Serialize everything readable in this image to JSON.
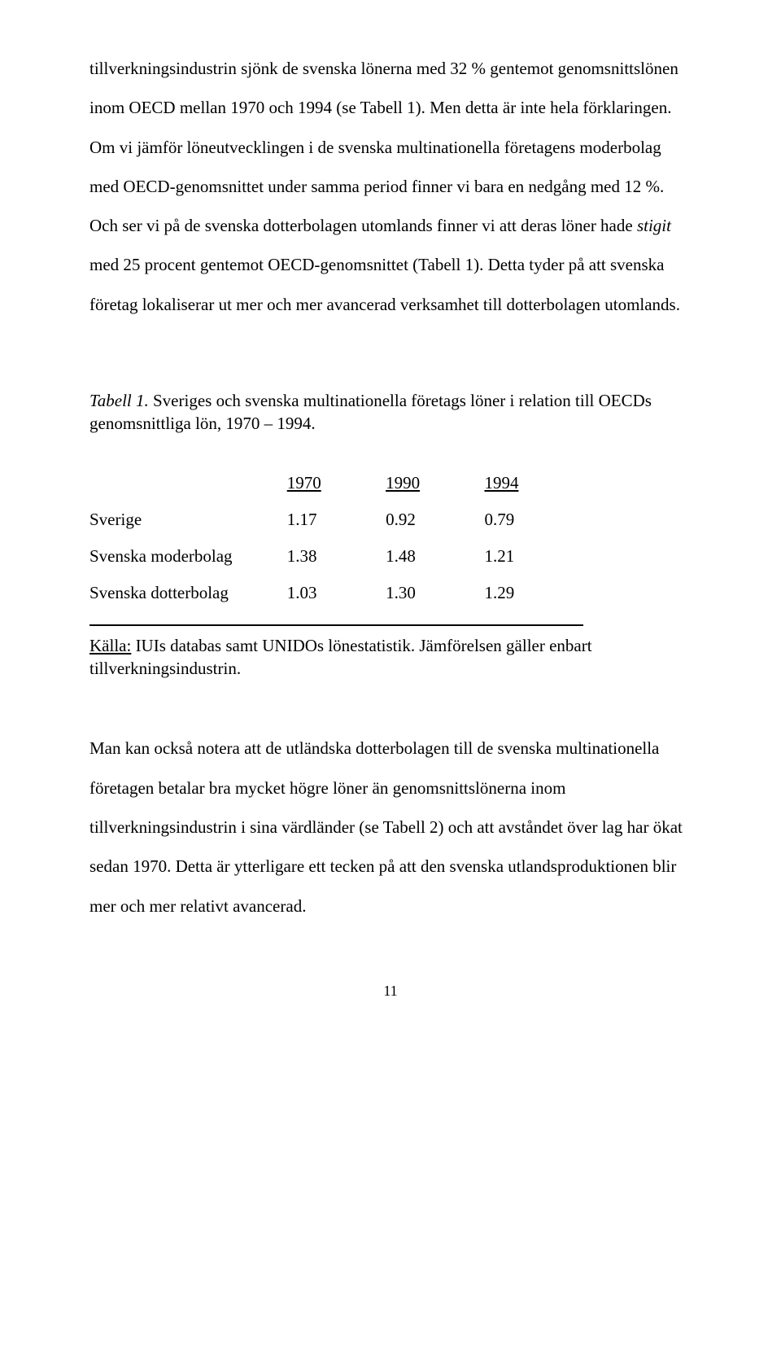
{
  "para1_a": "tillverkningsindustrin sjönk de svenska lönerna med 32 % gentemot genomsnittslönen inom OECD mellan 1970 och 1994 (se Tabell 1). Men detta är inte hela förklaringen. Om vi jämför löneutvecklingen i de svenska multinationella företagens moderbolag med OECD-genomsnittet under samma period finner vi bara en nedgång med 12 %. Och ser vi på de svenska dotterbolagen utomlands finner vi att deras löner hade ",
  "para1_italic": "stigit",
  "para1_b": " med 25 procent gentemot OECD-genomsnittet (Tabell 1). Detta tyder på att svenska företag lokaliserar ut mer och mer avancerad verksamhet till dotterbolagen utomlands.",
  "table_caption_title": "Tabell 1.",
  "table_caption_rest": " Sveriges och svenska multinationella företags löner i relation till OECDs genomsnittliga lön, 1970 – 1994.",
  "table": {
    "columns": [
      "1970",
      "1990",
      "1994"
    ],
    "rows": [
      {
        "label": "Sverige",
        "values": [
          "1.17",
          "0.92",
          "0.79"
        ]
      },
      {
        "label": "Svenska moderbolag",
        "values": [
          "1.38",
          "1.48",
          "1.21"
        ]
      },
      {
        "label": "Svenska dotterbolag",
        "values": [
          "1.03",
          "1.30",
          "1.29"
        ]
      }
    ]
  },
  "source_underlined": "Källa:",
  "source_rest": " IUIs databas samt UNIDOs lönestatistik. Jämförelsen gäller enbart tillverkningsindustrin.",
  "para2": "Man kan också notera att de utländska dotterbolagen till de svenska multinationella företagen betalar bra mycket högre löner än genomsnittslönerna inom tillverkningsindustrin i sina värdländer (se Tabell 2) och att avståndet över lag har ökat sedan 1970. Detta är ytterligare ett tecken på att den svenska utlandsproduktionen blir mer och mer relativt avancerad.",
  "page_number": "11"
}
